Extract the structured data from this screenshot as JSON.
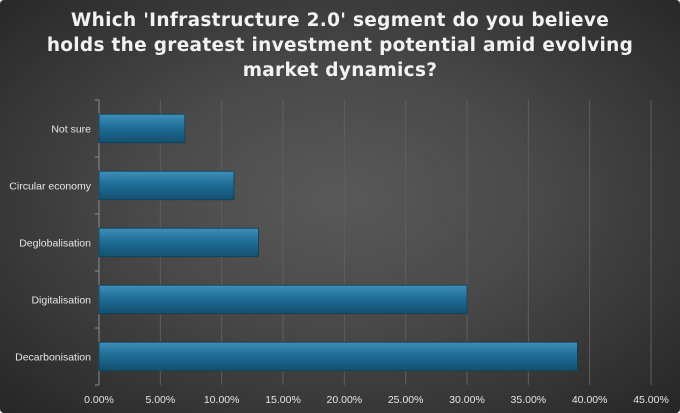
{
  "chart_data": {
    "type": "bar",
    "orientation": "horizontal",
    "title": "Which 'Infrastructure 2.0' segment do you believe holds the greatest investment potential amid evolving market dynamics?",
    "categories": [
      "Not sure",
      "Circular economy",
      "Deglobalisation",
      "Digitalisation",
      "Decarbonisation"
    ],
    "values": [
      7.0,
      11.0,
      13.0,
      30.0,
      39.0
    ],
    "value_unit": "%",
    "xlim": [
      0,
      45
    ],
    "xticks": [
      0,
      5,
      10,
      15,
      20,
      25,
      30,
      35,
      40,
      45
    ],
    "xtick_labels": [
      "0.00%",
      "5.00%",
      "10.00%",
      "15.00%",
      "20.00%",
      "25.00%",
      "30.00%",
      "35.00%",
      "40.00%",
      "45.00%"
    ],
    "xlabel": "",
    "ylabel": "",
    "grid": true,
    "legend": "none",
    "bar_color": "#1d6a93"
  }
}
